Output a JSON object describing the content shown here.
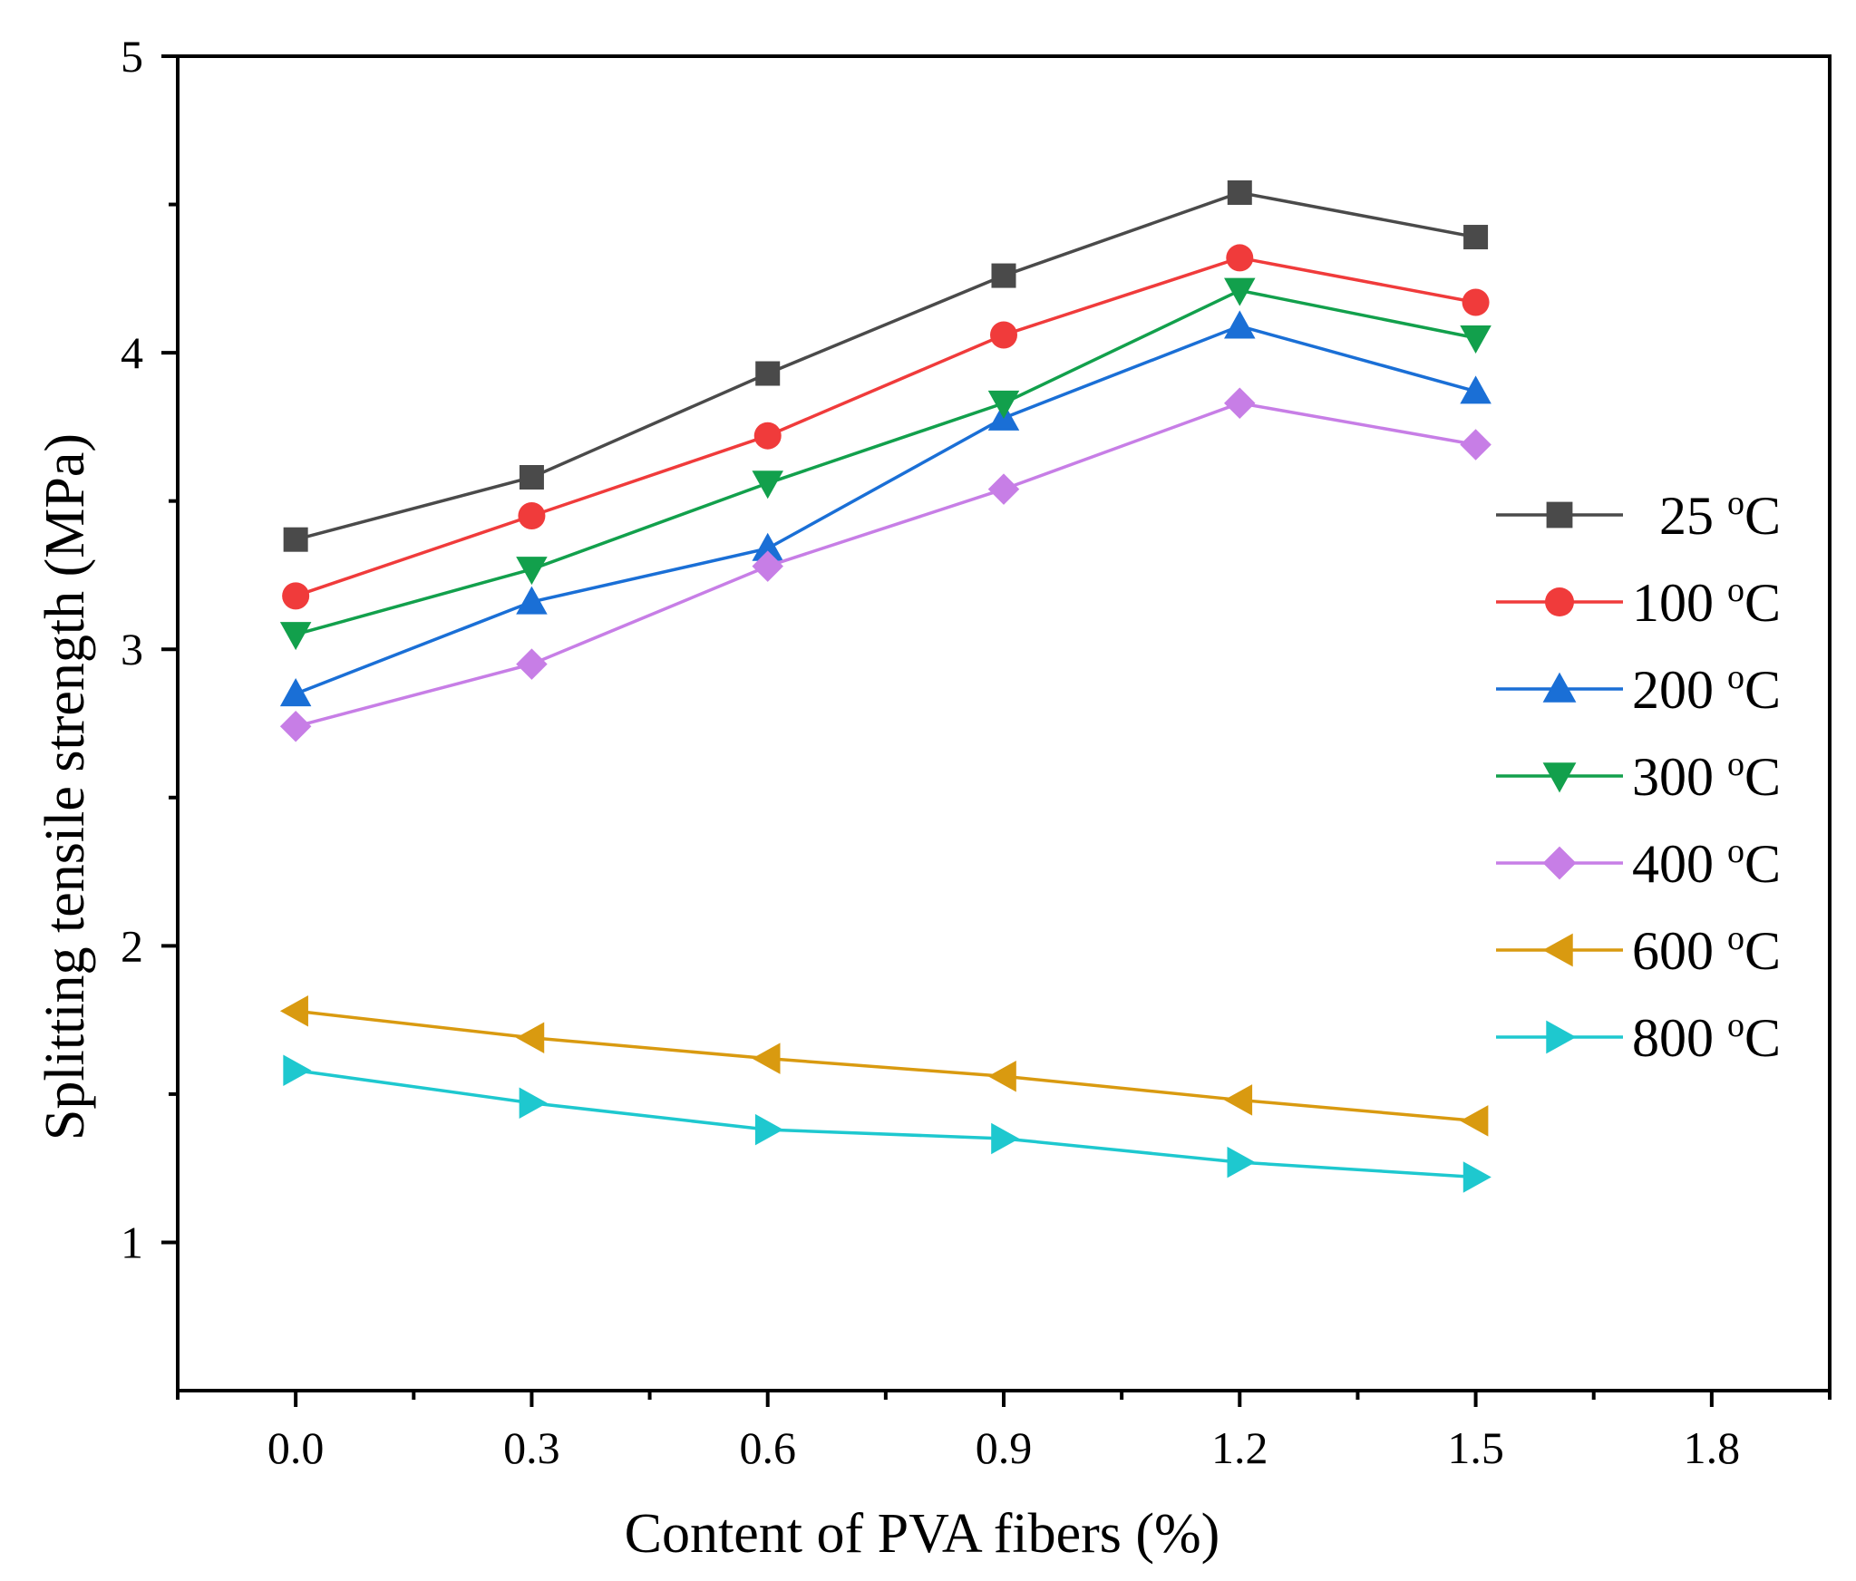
{
  "chart_data": {
    "type": "line",
    "title": "",
    "xlabel": "Content of PVA fibers (%)",
    "ylabel": "Splitting tensile strength (MPa)",
    "xlim": [
      -0.15,
      1.95
    ],
    "ylim": [
      0.5,
      5
    ],
    "x_ticks": [
      "0.0",
      "0.3",
      "0.6",
      "0.9",
      "1.2",
      "1.5",
      "1.8"
    ],
    "y_ticks": [
      "1",
      "2",
      "3",
      "4",
      "5"
    ],
    "legend_position": "right",
    "x": [
      0.0,
      0.3,
      0.6,
      0.9,
      1.2,
      1.5
    ],
    "series": [
      {
        "name": "25",
        "unit": "oC",
        "color": "#4a4a4a",
        "marker": "square",
        "values": [
          3.37,
          3.58,
          3.93,
          4.26,
          4.54,
          4.39
        ]
      },
      {
        "name": "100",
        "unit": "oC",
        "color": "#f03b3b",
        "marker": "circle",
        "values": [
          3.18,
          3.45,
          3.72,
          4.06,
          4.32,
          4.17
        ]
      },
      {
        "name": "200",
        "unit": "oC",
        "color": "#1a6fd6",
        "marker": "triangle-up",
        "values": [
          2.85,
          3.16,
          3.34,
          3.78,
          4.09,
          3.87
        ]
      },
      {
        "name": "300",
        "unit": "oC",
        "color": "#12a04c",
        "marker": "triangle-down",
        "values": [
          3.05,
          3.27,
          3.56,
          3.83,
          4.21,
          4.05
        ]
      },
      {
        "name": "400",
        "unit": "oC",
        "color": "#c77ee6",
        "marker": "diamond",
        "values": [
          2.74,
          2.95,
          3.28,
          3.54,
          3.83,
          3.69
        ]
      },
      {
        "name": "600",
        "unit": "oC",
        "color": "#d99a10",
        "marker": "triangle-left",
        "values": [
          1.78,
          1.69,
          1.62,
          1.56,
          1.48,
          1.41
        ]
      },
      {
        "name": "800",
        "unit": "oC",
        "color": "#1ec8cf",
        "marker": "triangle-right",
        "values": [
          1.58,
          1.47,
          1.38,
          1.35,
          1.27,
          1.22
        ]
      }
    ]
  }
}
